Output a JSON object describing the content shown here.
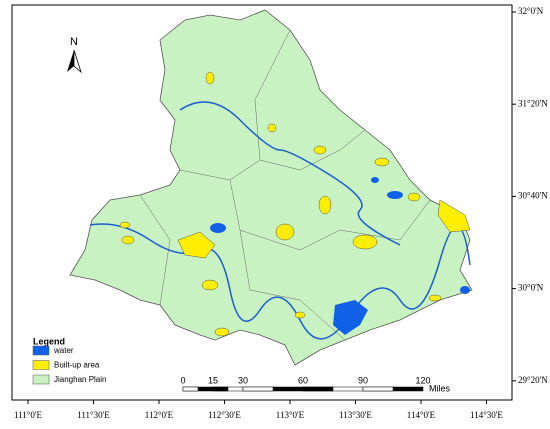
{
  "map": {
    "north": "N",
    "legend": {
      "title": "Legend",
      "items": [
        {
          "label": "water",
          "color": "#1060e8"
        },
        {
          "label": "Built-up area",
          "color": "#ffee00"
        },
        {
          "label": "Jianghan Plain",
          "color": "#c9f2c2"
        }
      ]
    },
    "scale_bar": {
      "ticks": [
        0,
        15,
        30,
        60,
        90,
        120
      ],
      "unit": "Miles"
    },
    "lon_labels": [
      "111°0'E",
      "111°30'E",
      "112°0'E",
      "112°30'E",
      "113°0'E",
      "113°30'E",
      "114°0'E",
      "114°30'E"
    ],
    "lat_labels": [
      "32°0'N",
      "31°20'N",
      "30°40'N",
      "30°0'N",
      "29°20'N"
    ]
  }
}
